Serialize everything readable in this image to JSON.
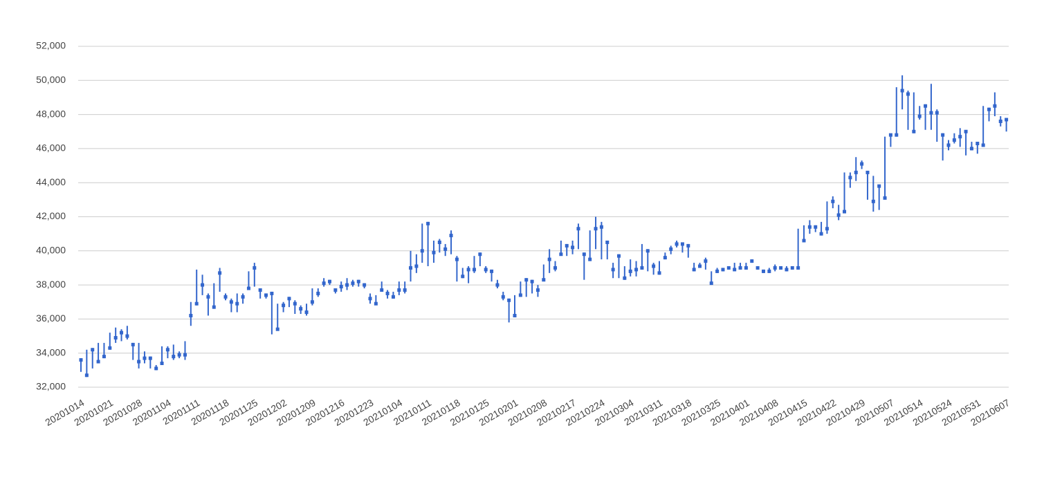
{
  "chart_data": {
    "type": "candlestick",
    "color": "#3366cc",
    "grid": true,
    "ylim": [
      32000,
      52000
    ],
    "yticks": [
      {
        "value": 32000,
        "label": "32,000"
      },
      {
        "value": 34000,
        "label": "34,000"
      },
      {
        "value": 36000,
        "label": "36,000"
      },
      {
        "value": 38000,
        "label": "38,000"
      },
      {
        "value": 40000,
        "label": "40,000"
      },
      {
        "value": 42000,
        "label": "42,000"
      },
      {
        "value": 44000,
        "label": "44,000"
      },
      {
        "value": 46000,
        "label": "46,000"
      },
      {
        "value": 48000,
        "label": "48,000"
      },
      {
        "value": 50000,
        "label": "50,000"
      },
      {
        "value": 52000,
        "label": "52,000"
      }
    ],
    "categories": [
      "20201014",
      null,
      null,
      null,
      null,
      "20201021",
      null,
      null,
      null,
      null,
      "20201028",
      null,
      null,
      null,
      null,
      "20201104",
      null,
      null,
      null,
      null,
      "20201111",
      null,
      null,
      null,
      null,
      "20201118",
      null,
      null,
      null,
      null,
      "20201125",
      null,
      null,
      null,
      null,
      "20201202",
      null,
      null,
      null,
      null,
      "20201209",
      null,
      null,
      null,
      null,
      "20201216",
      null,
      null,
      null,
      null,
      "20201223",
      null,
      null,
      null,
      null,
      "20210104",
      null,
      null,
      null,
      null,
      "20210111",
      null,
      null,
      null,
      null,
      "20210118",
      null,
      null,
      null,
      null,
      "20210125",
      null,
      null,
      null,
      null,
      "20210201",
      null,
      null,
      null,
      null,
      "20210208",
      null,
      null,
      null,
      null,
      "20210217",
      null,
      null,
      null,
      null,
      "20210224",
      null,
      null,
      null,
      null,
      "20210304",
      null,
      null,
      null,
      null,
      "20210311",
      null,
      null,
      null,
      null,
      "20210318",
      null,
      null,
      null,
      null,
      "20210325",
      null,
      null,
      null,
      null,
      "20210401",
      null,
      null,
      null,
      null,
      "20210408",
      null,
      null,
      null,
      null,
      "20210415",
      null,
      null,
      null,
      null,
      "20210422",
      null,
      null,
      null,
      null,
      "20210429",
      null,
      null,
      null,
      null,
      "20210507",
      null,
      null,
      null,
      null,
      "20210514",
      null,
      null,
      null,
      null,
      "20210524",
      null,
      null,
      null,
      null,
      "20210531",
      null,
      null,
      null,
      null,
      "20210607"
    ],
    "low": [
      32900,
      32600,
      33100,
      33400,
      33700,
      34200,
      34600,
      34700,
      34800,
      33600,
      33100,
      33400,
      33100,
      33000,
      33300,
      33700,
      33600,
      33700,
      33600,
      35600,
      36800,
      37400,
      36200,
      36600,
      37600,
      37100,
      36400,
      36400,
      36900,
      37700,
      37900,
      37200,
      37200,
      35100,
      35400,
      36400,
      36700,
      36300,
      36300,
      36200,
      36800,
      37300,
      37900,
      38000,
      37500,
      37600,
      37700,
      37900,
      37900,
      37800,
      36900,
      36900,
      37600,
      37200,
      37200,
      37400,
      37500,
      38200,
      38700,
      39300,
      39100,
      39300,
      39900,
      39700,
      39800,
      38200,
      38400,
      38100,
      38700,
      39100,
      38700,
      38200,
      37800,
      37100,
      35800,
      36100,
      37300,
      37300,
      37500,
      37300,
      38300,
      38700,
      38800,
      39800,
      39700,
      39800,
      40100,
      38300,
      39400,
      40100,
      39500,
      39500,
      38400,
      38400,
      38300,
      38500,
      38500,
      38900,
      38800,
      38600,
      38600,
      39500,
      39800,
      40200,
      39900,
      39600,
      38800,
      39000,
      38900,
      38100,
      38700,
      38800,
      38900,
      38900,
      38900,
      38900,
      39300,
      38900,
      38700,
      38700,
      38800,
      38900,
      38800,
      38900,
      38900,
      40600,
      41000,
      41100,
      40900,
      41000,
      42500,
      41800,
      42300,
      43700,
      44100,
      44800,
      43000,
      42300,
      42400,
      43100,
      46100,
      46700,
      48300,
      47100,
      46900,
      47700,
      47100,
      47100,
      46400,
      45300,
      45900,
      46300,
      46100,
      45600,
      45900,
      45700,
      46100,
      47600,
      47900,
      47300,
      47000
    ],
    "close": [
      33600,
      32700,
      34200,
      33500,
      33800,
      34300,
      34900,
      35200,
      35000,
      34500,
      33500,
      33700,
      33700,
      33100,
      33400,
      34200,
      33800,
      33900,
      33900,
      36200,
      36900,
      38000,
      37300,
      36700,
      38700,
      37300,
      37000,
      36900,
      37300,
      37800,
      39000,
      37700,
      37400,
      37500,
      35400,
      36800,
      37200,
      36900,
      36600,
      36400,
      37000,
      37500,
      38100,
      38200,
      37700,
      37900,
      38000,
      38100,
      38200,
      38000,
      37200,
      36900,
      37700,
      37500,
      37300,
      37700,
      37700,
      39000,
      39100,
      40000,
      41600,
      39900,
      40500,
      40100,
      40900,
      39500,
      38500,
      38900,
      38900,
      39800,
      38900,
      38800,
      38000,
      37300,
      37100,
      36200,
      37400,
      38300,
      38200,
      37700,
      38300,
      39500,
      39000,
      39800,
      40300,
      40200,
      41300,
      39800,
      39500,
      41300,
      41400,
      40500,
      38900,
      39700,
      38400,
      38800,
      38900,
      39000,
      40000,
      39100,
      38700,
      39600,
      40100,
      40400,
      40400,
      40300,
      38900,
      39100,
      39400,
      38100,
      38800,
      38900,
      39000,
      38900,
      39000,
      39000,
      39400,
      39000,
      38800,
      38800,
      39000,
      39000,
      38900,
      39000,
      39000,
      40600,
      41400,
      41400,
      41000,
      41300,
      42900,
      42100,
      42300,
      44300,
      44600,
      45100,
      44600,
      42900,
      43800,
      43100,
      46800,
      46800,
      49400,
      49200,
      47000,
      47900,
      48500,
      48100,
      48100,
      46800,
      46200,
      46500,
      46700,
      47000,
      46000,
      46300,
      46200,
      48300,
      48500,
      47600,
      47700
    ],
    "high": [
      33700,
      34200,
      34300,
      34600,
      34600,
      35200,
      35500,
      35400,
      35600,
      34600,
      34600,
      34100,
      33800,
      33300,
      34400,
      34400,
      34500,
      34100,
      34700,
      37000,
      38900,
      38600,
      37500,
      38100,
      39000,
      37500,
      37200,
      37500,
      37500,
      38800,
      39300,
      37800,
      37500,
      37600,
      36900,
      37000,
      37300,
      37100,
      36800,
      36900,
      37800,
      37800,
      38400,
      38300,
      37800,
      38200,
      38400,
      38300,
      38300,
      38100,
      37500,
      37400,
      38200,
      37700,
      37600,
      38200,
      38200,
      40000,
      39800,
      41600,
      41700,
      40600,
      40700,
      40400,
      41200,
      39700,
      39000,
      39100,
      39700,
      39900,
      39100,
      38900,
      38300,
      37600,
      37200,
      37400,
      38200,
      38400,
      38300,
      38000,
      39200,
      40100,
      39400,
      40600,
      40400,
      40600,
      41600,
      39900,
      41200,
      42000,
      41700,
      40500,
      39300,
      39800,
      39100,
      39500,
      39400,
      40400,
      40100,
      39300,
      39400,
      39900,
      40300,
      40600,
      40500,
      40400,
      39300,
      39300,
      39600,
      38800,
      39000,
      39000,
      39100,
      39300,
      39300,
      39300,
      39500,
      39100,
      38900,
      39000,
      39200,
      39100,
      39100,
      39100,
      41300,
      41500,
      41800,
      41500,
      41700,
      42900,
      43200,
      42700,
      44600,
      44600,
      45500,
      45300,
      44600,
      44400,
      43800,
      46700,
      46800,
      49600,
      50300,
      49400,
      49300,
      48500,
      48600,
      49800,
      48300,
      46900,
      46500,
      46900,
      47200,
      47000,
      46400,
      46400,
      48500,
      48400,
      49300,
      47900,
      47800
    ]
  }
}
